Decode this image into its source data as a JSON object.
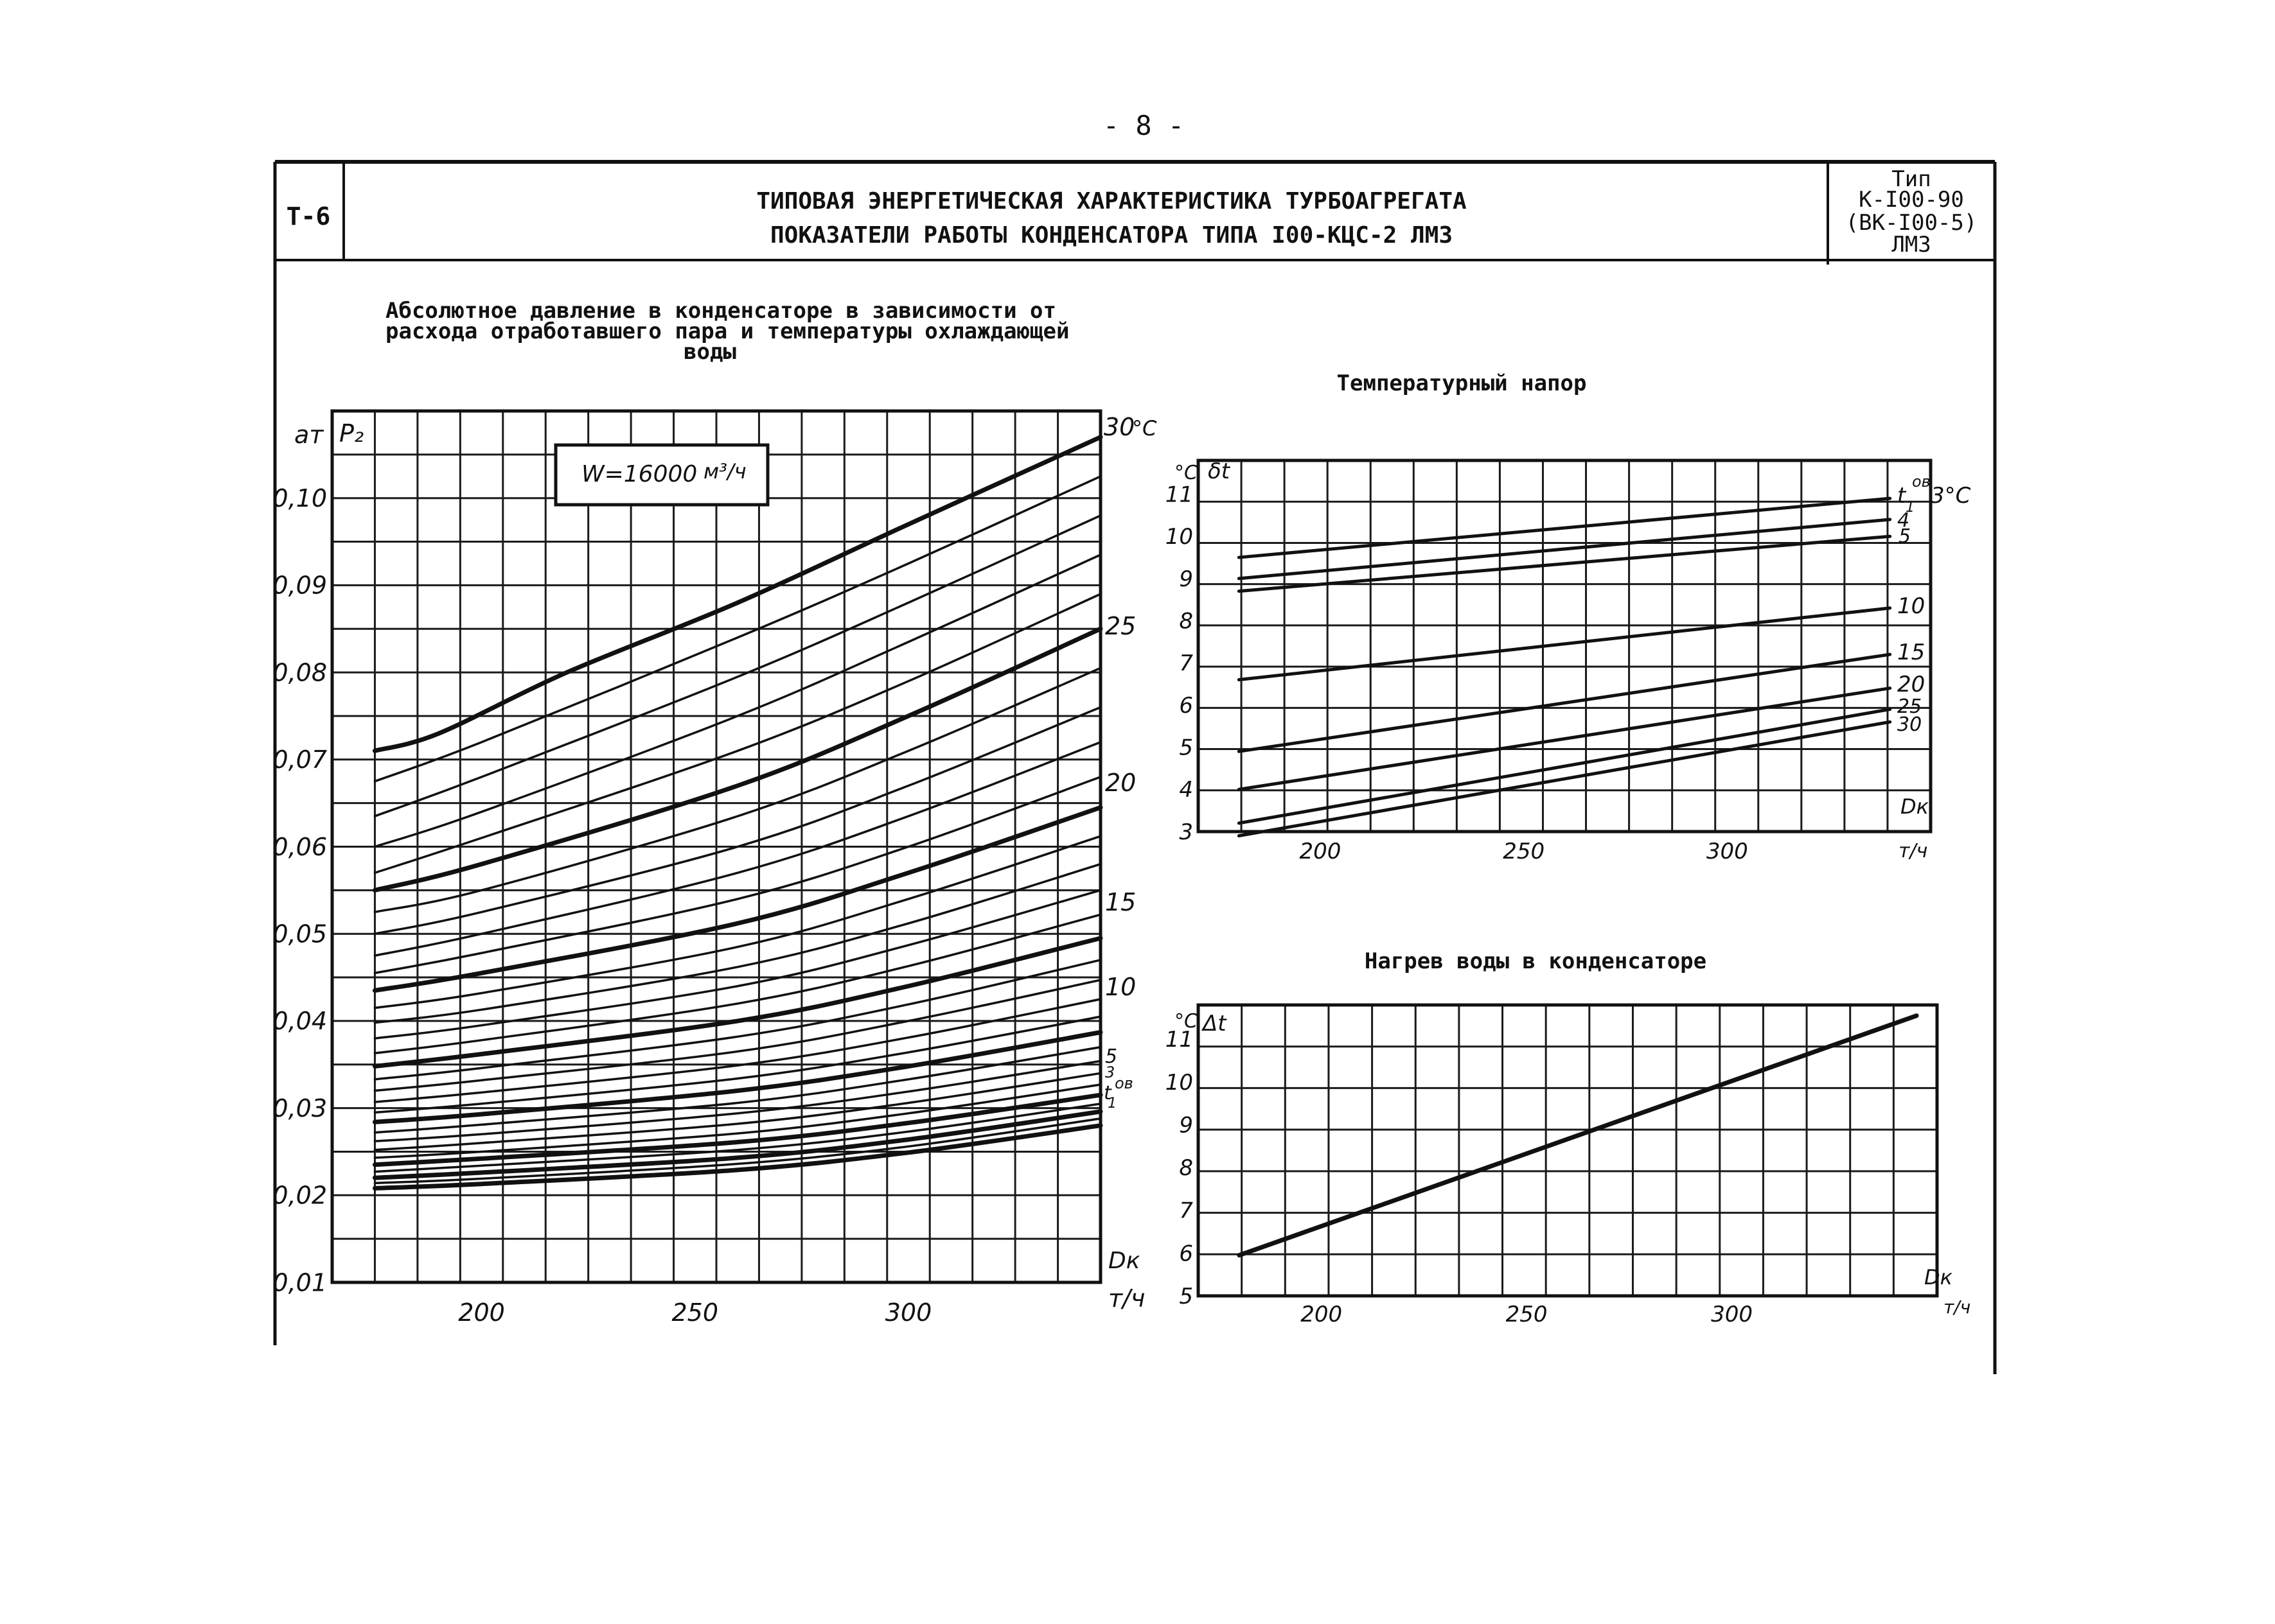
{
  "page": {
    "number": "- 8 -"
  },
  "header": {
    "code": "Т-6",
    "title_line1": "ТИПОВАЯ ЭНЕРГЕТИЧЕСКАЯ ХАРАКТЕРИСТИКА ТУРБОАГРЕГАТА",
    "title_line2": "ПОКАЗАТЕЛИ РАБОТЫ КОНДЕНСАТОРА ТИПА I00-КЦС-2 ЛМЗ",
    "type_label": "Тип",
    "type_line1": "К-I00-90",
    "type_line2": "(ВК-I00-5)",
    "type_line3": "ЛМЗ"
  },
  "chart_data": [
    {
      "type": "line",
      "title": "Абсолютное давление в конденсаторе в зависимости от расхода отработавшего пара и температуры охлаждающей воды",
      "title_lines": [
        "Абсолютное давление в конденсаторе в зависимости от",
        "расхода отработавшего пара и температуры охлаждающей",
        "воды"
      ],
      "annotation": "W=16000",
      "annotation_unit": "м³/ч",
      "ylabel": "P₂",
      "yunit": "ат",
      "xlabel": "Dк",
      "xunit": "т/ч",
      "xlim": [
        165,
        345
      ],
      "ylim": [
        0.01,
        0.11
      ],
      "xticks": [
        "200",
        "250",
        "300"
      ],
      "xtick_values": [
        200,
        250,
        300
      ],
      "yticks": [
        "0,10",
        "0,09",
        "0,08",
        "0,07",
        "0,06",
        "0,05",
        "0,04",
        "0,03",
        "0,02",
        "0,01"
      ],
      "ytick_values": [
        0.1,
        0.09,
        0.08,
        0.07,
        0.06,
        0.05,
        0.04,
        0.03,
        0.02,
        0.01
      ],
      "grid": true,
      "curve_labels": [
        "30",
        "°C",
        "25",
        "20",
        "15",
        "10",
        "5",
        "3",
        "t",
        "ов",
        "1"
      ],
      "series": [
        {
          "temp": 30,
          "x": [
            175,
            190,
            220,
            260,
            300,
            345
          ],
          "y": [
            0.071,
            0.073,
            0.08,
            0.088,
            0.097,
            0.107
          ]
        },
        {
          "temp": 29,
          "x": [
            175,
            200,
            260,
            300,
            345
          ],
          "y": [
            0.0675,
            0.072,
            0.084,
            0.0925,
            0.1025
          ]
        },
        {
          "temp": 28,
          "x": [
            175,
            200,
            260,
            300,
            345
          ],
          "y": [
            0.0635,
            0.068,
            0.0795,
            0.088,
            0.098
          ]
        },
        {
          "temp": 27,
          "x": [
            175,
            200,
            260,
            300,
            345
          ],
          "y": [
            0.06,
            0.064,
            0.075,
            0.0835,
            0.0935
          ]
        },
        {
          "temp": 26,
          "x": [
            175,
            200,
            260,
            300,
            345
          ],
          "y": [
            0.057,
            0.061,
            0.071,
            0.079,
            0.089
          ]
        },
        {
          "temp": 25,
          "x": [
            175,
            200,
            260,
            300,
            345
          ],
          "y": [
            0.055,
            0.058,
            0.067,
            0.075,
            0.085
          ]
        },
        {
          "temp": 24,
          "x": [
            175,
            200,
            260,
            300,
            345
          ],
          "y": [
            0.0525,
            0.055,
            0.0635,
            0.071,
            0.0805
          ]
        },
        {
          "temp": 23,
          "x": [
            175,
            200,
            260,
            300,
            345
          ],
          "y": [
            0.05,
            0.0525,
            0.06,
            0.067,
            0.076
          ]
        },
        {
          "temp": 22,
          "x": [
            175,
            200,
            260,
            300,
            345
          ],
          "y": [
            0.0475,
            0.05,
            0.057,
            0.0635,
            0.072
          ]
        },
        {
          "temp": 21,
          "x": [
            175,
            200,
            260,
            300,
            345
          ],
          "y": [
            0.0455,
            0.0478,
            0.054,
            0.06,
            0.068
          ]
        },
        {
          "temp": 20,
          "x": [
            175,
            200,
            260,
            300,
            345
          ],
          "y": [
            0.0435,
            0.0455,
            0.0512,
            0.057,
            0.0645
          ]
        },
        {
          "temp": 19,
          "x": [
            175,
            200,
            260,
            300,
            345
          ],
          "y": [
            0.0415,
            0.0432,
            0.0485,
            0.054,
            0.0612
          ]
        },
        {
          "temp": 18,
          "x": [
            175,
            200,
            260,
            300,
            345
          ],
          "y": [
            0.0398,
            0.0413,
            0.0462,
            0.0512,
            0.058
          ]
        },
        {
          "temp": 17,
          "x": [
            175,
            200,
            260,
            300,
            345
          ],
          "y": [
            0.038,
            0.0395,
            0.044,
            0.0487,
            0.055
          ]
        },
        {
          "temp": 16,
          "x": [
            175,
            200,
            260,
            300,
            345
          ],
          "y": [
            0.0363,
            0.0378,
            0.042,
            0.0463,
            0.0522
          ]
        },
        {
          "temp": 15,
          "x": [
            175,
            200,
            260,
            300,
            345
          ],
          "y": [
            0.0348,
            0.0362,
            0.04,
            0.044,
            0.0495
          ]
        },
        {
          "temp": 14,
          "x": [
            175,
            200,
            260,
            300,
            345
          ],
          "y": [
            0.0333,
            0.0346,
            0.0382,
            0.0419,
            0.047
          ]
        },
        {
          "temp": 13,
          "x": [
            175,
            200,
            260,
            300,
            345
          ],
          "y": [
            0.032,
            0.0332,
            0.0365,
            0.04,
            0.0447
          ]
        },
        {
          "temp": 12,
          "x": [
            175,
            200,
            260,
            300,
            345
          ],
          "y": [
            0.0307,
            0.0318,
            0.0349,
            0.0381,
            0.0425
          ]
        },
        {
          "temp": 11,
          "x": [
            175,
            200,
            260,
            300,
            345
          ],
          "y": [
            0.0295,
            0.0305,
            0.0334,
            0.0364,
            0.0405
          ]
        },
        {
          "temp": 10,
          "x": [
            175,
            200,
            260,
            300,
            345
          ],
          "y": [
            0.0284,
            0.0293,
            0.032,
            0.0348,
            0.0387
          ]
        },
        {
          "temp": 9,
          "x": [
            175,
            200,
            260,
            300,
            345
          ],
          "y": [
            0.0272,
            0.0281,
            0.0306,
            0.0333,
            0.037
          ]
        },
        {
          "temp": 8,
          "x": [
            175,
            200,
            260,
            300,
            345
          ],
          "y": [
            0.0262,
            0.027,
            0.0294,
            0.0319,
            0.0354
          ]
        },
        {
          "temp": 7,
          "x": [
            175,
            200,
            260,
            300,
            345
          ],
          "y": [
            0.0252,
            0.026,
            0.0282,
            0.0306,
            0.034
          ]
        },
        {
          "temp": 6,
          "x": [
            175,
            200,
            260,
            300,
            345
          ],
          "y": [
            0.0243,
            0.025,
            0.0271,
            0.0294,
            0.0327
          ]
        },
        {
          "temp": 5,
          "x": [
            175,
            200,
            260,
            300,
            345
          ],
          "y": [
            0.0235,
            0.0242,
            0.0261,
            0.0283,
            0.0315
          ]
        },
        {
          "temp": 4,
          "x": [
            175,
            200,
            260,
            300,
            345
          ],
          "y": [
            0.0227,
            0.0234,
            0.0252,
            0.0273,
            0.0305
          ]
        },
        {
          "temp": 3,
          "x": [
            175,
            200,
            260,
            300,
            345
          ],
          "y": [
            0.022,
            0.0226,
            0.0243,
            0.0264,
            0.0296
          ]
        },
        {
          "temp": 2,
          "x": [
            175,
            200,
            260,
            300,
            345
          ],
          "y": [
            0.0214,
            0.0219,
            0.0236,
            0.0256,
            0.0288
          ]
        },
        {
          "temp": 1,
          "x": [
            175,
            200,
            260,
            300,
            345
          ],
          "y": [
            0.0208,
            0.0213,
            0.0229,
            0.0249,
            0.028
          ]
        }
      ]
    },
    {
      "type": "line",
      "title": "Температурный напор",
      "ylabel": "δt",
      "yunit": "°С",
      "xlabel": "Dк",
      "xunit": "т/ч",
      "xlim": [
        170,
        350
      ],
      "ylim": [
        3,
        11.8
      ],
      "xticks": [
        "200",
        "250",
        "300"
      ],
      "xtick_values": [
        200,
        250,
        300
      ],
      "yticks": [
        "11",
        "10",
        "9",
        "8",
        "7",
        "6",
        "5",
        "4",
        "3"
      ],
      "ytick_values": [
        11,
        10,
        9,
        8,
        7,
        6,
        5,
        4,
        3
      ],
      "grid": true,
      "curve_labels": [
        "t",
        "ов",
        "1",
        "3°C",
        "4",
        "5",
        "10",
        "15",
        "20",
        "25",
        "30"
      ],
      "series": [
        {
          "temp": 3,
          "x": [
            180,
            340
          ],
          "y": [
            9.5,
            10.9
          ]
        },
        {
          "temp": 4,
          "x": [
            180,
            340
          ],
          "y": [
            9.0,
            10.4
          ]
        },
        {
          "temp": 5,
          "x": [
            180,
            340
          ],
          "y": [
            8.7,
            10.0
          ]
        },
        {
          "temp": 10,
          "x": [
            180,
            340
          ],
          "y": [
            6.6,
            8.3
          ]
        },
        {
          "temp": 15,
          "x": [
            180,
            340
          ],
          "y": [
            4.9,
            7.2
          ]
        },
        {
          "temp": 20,
          "x": [
            180,
            340
          ],
          "y": [
            4.0,
            6.4
          ]
        },
        {
          "temp": 25,
          "x": [
            180,
            340
          ],
          "y": [
            3.2,
            5.9
          ]
        },
        {
          "temp": 30,
          "x": [
            180,
            340
          ],
          "y": [
            2.9,
            5.6
          ]
        }
      ]
    },
    {
      "type": "line",
      "title": "Нагрев воды в конденсаторе",
      "ylabel": "Δt",
      "yunit": "°С",
      "xlabel": "Dк",
      "xunit": "т/ч",
      "xlim": [
        170,
        350
      ],
      "ylim": [
        5,
        11.8
      ],
      "xticks": [
        "200",
        "250",
        "300"
      ],
      "xtick_values": [
        200,
        250,
        300
      ],
      "yticks": [
        "11",
        "10",
        "9",
        "8",
        "7",
        "6",
        "5"
      ],
      "ytick_values": [
        11,
        10,
        9,
        8,
        7,
        6,
        5
      ],
      "grid": true,
      "series": [
        {
          "x": [
            180,
            345
          ],
          "y": [
            5.95,
            11.55
          ]
        }
      ]
    }
  ]
}
